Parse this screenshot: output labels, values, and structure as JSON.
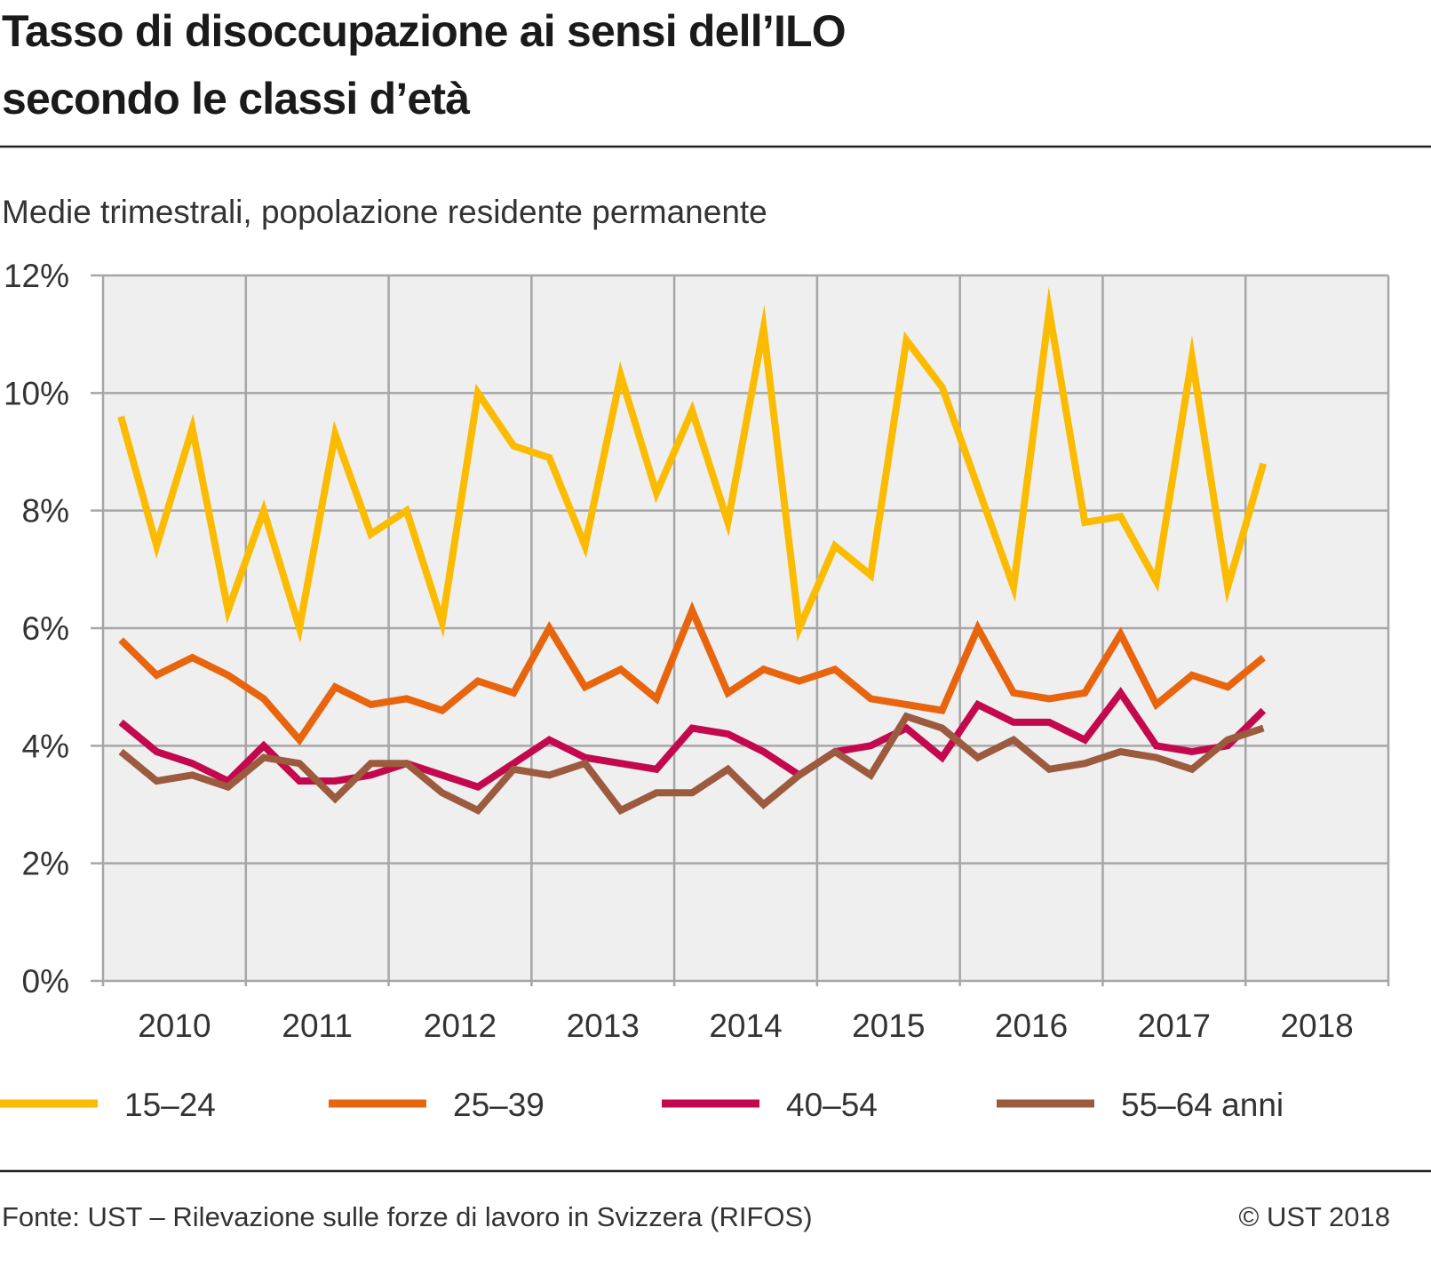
{
  "title_lines": [
    "Tasso di disoccupazione ai sensi dell’ILO",
    "secondo le classi d’età"
  ],
  "subtitle": "Medie trimestrali, popolazione residente permanente",
  "footer": {
    "source": "Fonte: UST – Rilevazione sulle forze di lavoro in Svizzera (RIFOS)",
    "copyright": "© UST 2018"
  },
  "chart_data": {
    "type": "line",
    "title": "Tasso di disoccupazione ai sensi dell’ILO secondo le classi d’età",
    "subtitle": "Medie trimestrali, popolazione residente permanente",
    "x": [
      "2010 Q1",
      "2010 Q2",
      "2010 Q3",
      "2010 Q4",
      "2011 Q1",
      "2011 Q2",
      "2011 Q3",
      "2011 Q4",
      "2012 Q1",
      "2012 Q2",
      "2012 Q3",
      "2012 Q4",
      "2013 Q1",
      "2013 Q2",
      "2013 Q3",
      "2013 Q4",
      "2014 Q1",
      "2014 Q2",
      "2014 Q3",
      "2014 Q4",
      "2015 Q1",
      "2015 Q2",
      "2015 Q3",
      "2015 Q4",
      "2016 Q1",
      "2016 Q2",
      "2016 Q3",
      "2016 Q4",
      "2017 Q1",
      "2017 Q2",
      "2017 Q3",
      "2017 Q4",
      "2018 Q1"
    ],
    "x_tick_labels": [
      "2010",
      "2011",
      "2012",
      "2013",
      "2014",
      "2015",
      "2016",
      "2017",
      "2018"
    ],
    "y_tick_labels": [
      "0%",
      "2%",
      "4%",
      "6%",
      "8%",
      "10%",
      "12%"
    ],
    "ylim": [
      0,
      12
    ],
    "yunit": "%",
    "grid": true,
    "legend_position": "bottom",
    "series": [
      {
        "name": "15–24",
        "color": "#fbbb00",
        "values": [
          9.6,
          7.4,
          9.4,
          6.3,
          8.0,
          6.0,
          9.3,
          7.6,
          8.0,
          6.1,
          10.0,
          9.1,
          8.9,
          7.4,
          10.3,
          8.3,
          9.7,
          7.8,
          11.1,
          6.0,
          7.4,
          6.9,
          10.9,
          10.1,
          8.4,
          6.7,
          11.4,
          7.8,
          7.9,
          6.8,
          10.6,
          6.7,
          8.8
        ]
      },
      {
        "name": "25–39",
        "color": "#e8650e",
        "values": [
          5.8,
          5.2,
          5.5,
          5.2,
          4.8,
          4.1,
          5.0,
          4.7,
          4.8,
          4.6,
          5.1,
          4.9,
          6.0,
          5.0,
          5.3,
          4.8,
          6.3,
          4.9,
          5.3,
          5.1,
          5.3,
          4.8,
          4.7,
          4.6,
          6.0,
          4.9,
          4.8,
          4.9,
          5.9,
          4.7,
          5.2,
          5.0,
          5.5
        ]
      },
      {
        "name": "40–54",
        "color": "#c4084e",
        "values": [
          4.4,
          3.9,
          3.7,
          3.4,
          4.0,
          3.4,
          3.4,
          3.5,
          3.7,
          3.5,
          3.3,
          3.7,
          4.1,
          3.8,
          3.7,
          3.6,
          4.3,
          4.2,
          3.9,
          3.5,
          3.9,
          4.0,
          4.3,
          3.8,
          4.7,
          4.4,
          4.4,
          4.1,
          4.9,
          4.0,
          3.9,
          4.0,
          4.6
        ]
      },
      {
        "name": "55–64 anni",
        "color": "#9c5a3e",
        "values": [
          3.9,
          3.4,
          3.5,
          3.3,
          3.8,
          3.7,
          3.1,
          3.7,
          3.7,
          3.2,
          2.9,
          3.6,
          3.5,
          3.7,
          2.9,
          3.2,
          3.2,
          3.6,
          3.0,
          3.5,
          3.9,
          3.5,
          4.5,
          4.3,
          3.8,
          4.1,
          3.6,
          3.7,
          3.9,
          3.8,
          3.6,
          4.1,
          4.3
        ]
      }
    ]
  }
}
